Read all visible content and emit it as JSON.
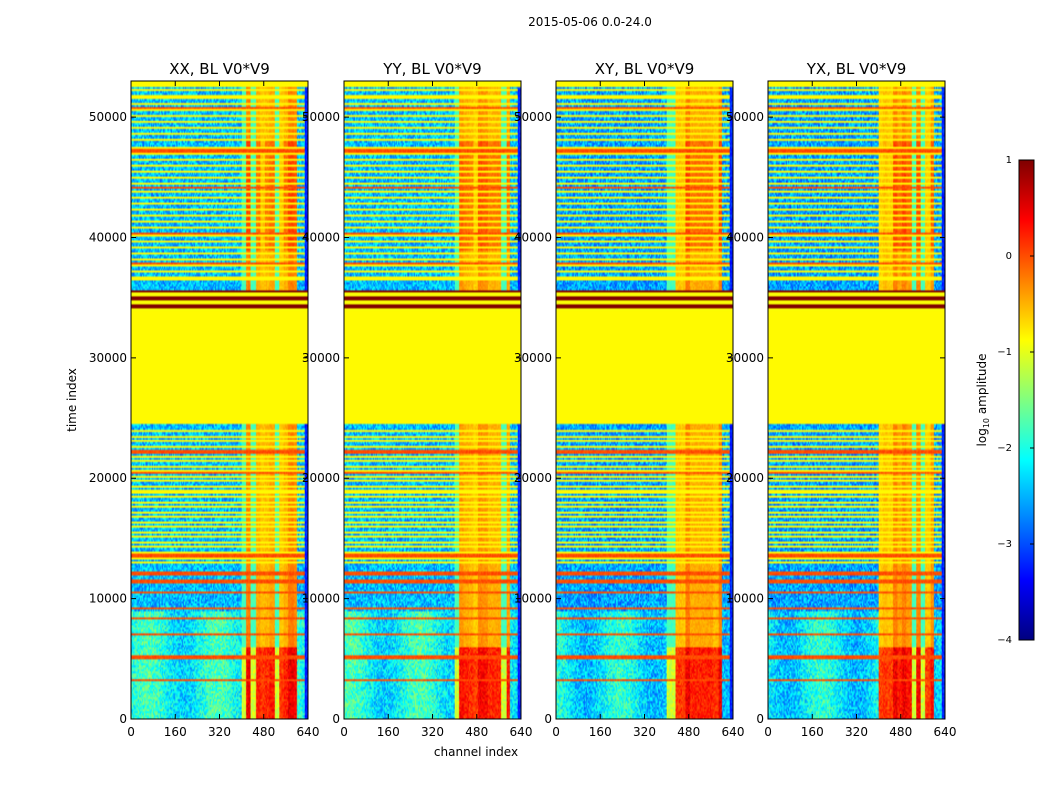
{
  "chart_data": {
    "type": "heatmap",
    "suptitle": "2015-05-06 0.0-24.0",
    "xlabel": "channel index",
    "ylabel": "time index",
    "xlim": [
      0,
      640
    ],
    "ylim": [
      0,
      53000
    ],
    "xticks": [
      0,
      160,
      320,
      480,
      640
    ],
    "yticks": [
      0,
      10000,
      20000,
      30000,
      40000,
      50000
    ],
    "panels": [
      {
        "title": "XX, BL V0*V9",
        "polarization": "XX",
        "bright_band_start_channel": 400,
        "bright_band_end_channel": 600
      },
      {
        "title": "YY, BL V0*V9",
        "polarization": "YY",
        "bright_band_start_channel": 400,
        "bright_band_end_channel": 600
      },
      {
        "title": "XY, BL V0*V9",
        "polarization": "XY",
        "bright_band_start_channel": 400,
        "bright_band_end_channel": 600
      },
      {
        "title": "YX, BL V0*V9",
        "polarization": "YX",
        "bright_band_start_channel": 400,
        "bright_band_end_channel": 600
      }
    ],
    "flagged_time_range": [
      24500,
      34000
    ],
    "flagged_value_log10": -0.85,
    "saturated_time_range": [
      34000,
      35600
    ],
    "colorbar": {
      "label": "log$_{10}$ amplitude",
      "label_main": "log",
      "label_sub": "10",
      "label_rest": " amplitude",
      "vmin": -4,
      "vmax": 1,
      "ticks": [
        "1",
        "0",
        "−1",
        "−2",
        "−3",
        "−4"
      ],
      "colormap": "jet",
      "colors": [
        "#00007f",
        "#0000ff",
        "#0080ff",
        "#00ffff",
        "#80ff80",
        "#ffff00",
        "#ff8000",
        "#ff0000",
        "#7f0000"
      ]
    }
  }
}
